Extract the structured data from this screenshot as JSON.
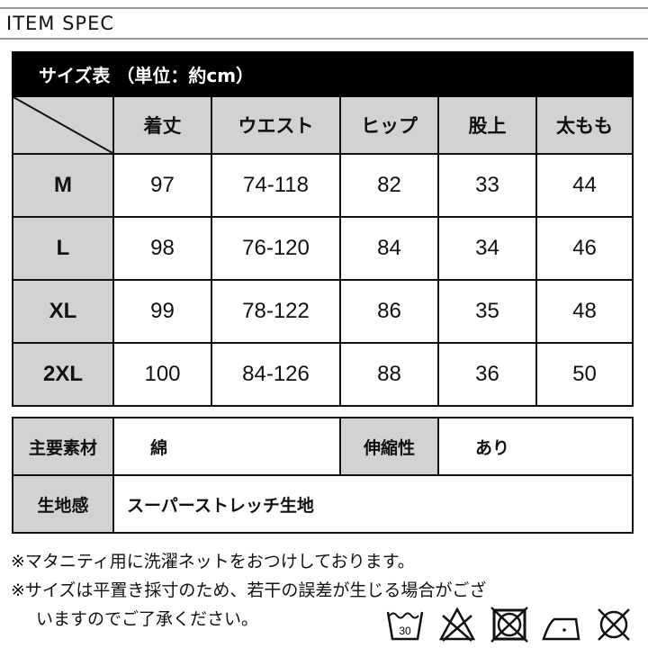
{
  "header": {
    "title": "ITEM SPEC"
  },
  "size_table": {
    "title": "サイズ表 （単位：約cm）",
    "columns": [
      "着丈",
      "ウエスト",
      "ヒップ",
      "股上",
      "太もも"
    ],
    "rows": [
      {
        "size": "M",
        "values": [
          "97",
          "74-118",
          "82",
          "33",
          "44"
        ]
      },
      {
        "size": "L",
        "values": [
          "98",
          "76-120",
          "84",
          "34",
          "46"
        ]
      },
      {
        "size": "XL",
        "values": [
          "99",
          "78-122",
          "86",
          "35",
          "48"
        ]
      },
      {
        "size": "2XL",
        "values": [
          "100",
          "84-126",
          "88",
          "36",
          "50"
        ]
      }
    ]
  },
  "material_table": {
    "main_material_label": "主要素材",
    "main_material": "綿",
    "stretch_label": "伸縮性",
    "stretch": "あり",
    "feel_label": "生地感",
    "feel": "スーパーストレッチ生地"
  },
  "notes": [
    "※マタニティ用に洗濯ネットをおつけしております。",
    "※サイズは平置き採寸のため、若干の誤差が生じる場合がござ",
    "いますのでご了承ください。"
  ],
  "care_icons": {
    "wash_temp": "30",
    "icons": [
      "wash-30-icon",
      "no-bleach-icon",
      "no-tumble-dry-icon",
      "iron-low-icon",
      "no-dry-clean-icon"
    ]
  }
}
